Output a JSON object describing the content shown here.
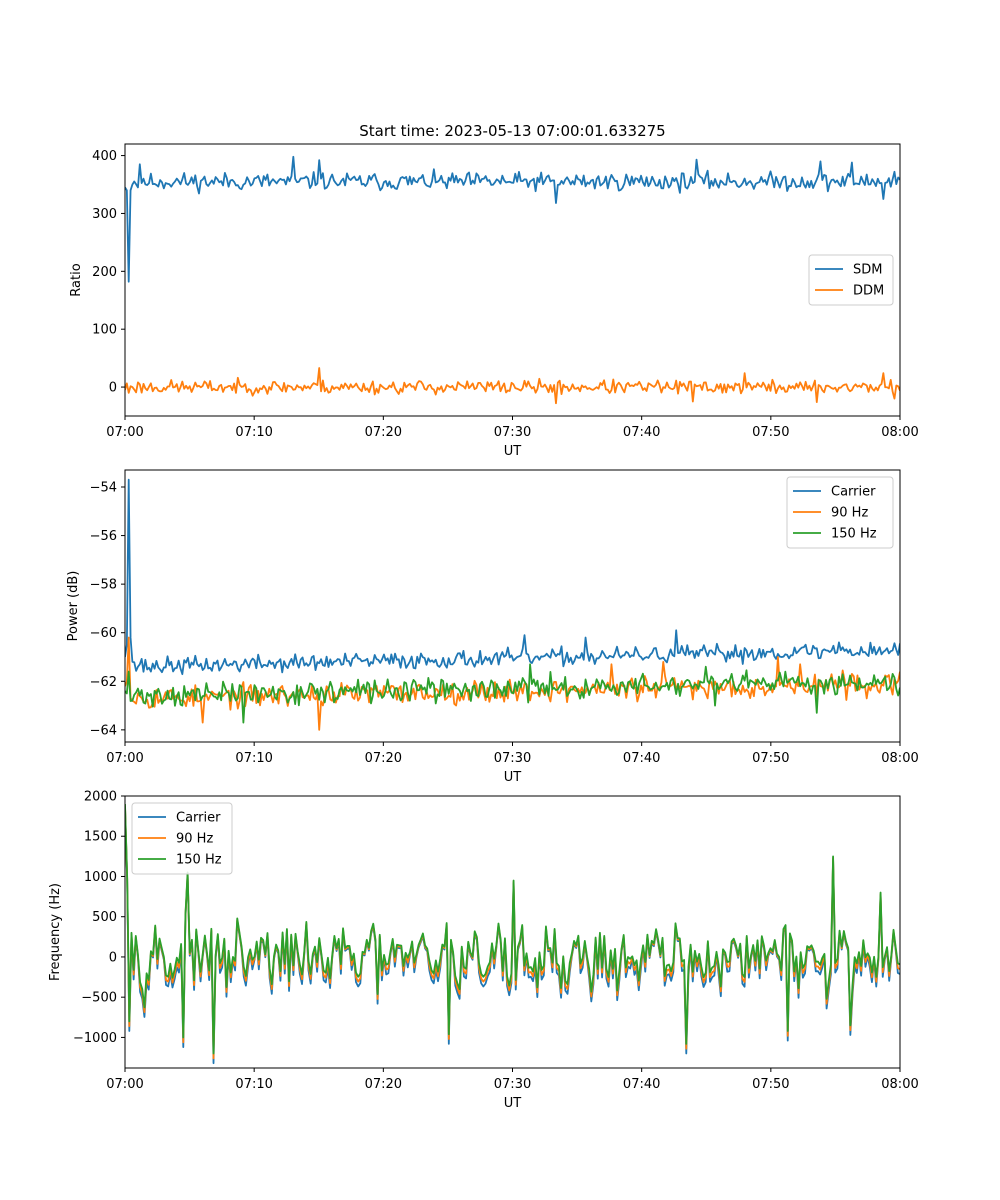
{
  "figure": {
    "title": "Start time: 2023-05-13 07:00:01.633275"
  },
  "colors": {
    "c0": "#1f77b4",
    "c1": "#ff7f0e",
    "c2": "#2ca02c"
  },
  "chart_data": [
    {
      "type": "line",
      "title": "Start time: 2023-05-13 07:00:01.633275",
      "xlabel": "UT",
      "ylabel": "Ratio",
      "x_ticks": [
        "07:00",
        "07:10",
        "07:20",
        "07:30",
        "07:40",
        "07:50",
        "08:00"
      ],
      "xlim_minutes": [
        0,
        60
      ],
      "ylim": [
        -50,
        420
      ],
      "y_ticks": [
        0,
        100,
        200,
        300,
        400
      ],
      "y_tick_labels": [
        "0",
        "100",
        "200",
        "300",
        "400"
      ],
      "legend_loc": "center-right",
      "series": [
        {
          "name": "SDM",
          "color": "#1f77b4",
          "base": 355,
          "amp": 26,
          "anchors": [
            [
              0,
              345
            ],
            [
              0.15,
              340
            ],
            [
              0.25,
              182
            ],
            [
              0.4,
              340
            ],
            [
              0.6,
              350
            ],
            [
              1.0,
              345
            ],
            [
              1.5,
              360
            ]
          ],
          "extremes": [
            [
              1.1,
              385
            ],
            [
              13.0,
              398
            ],
            [
              15.0,
              392
            ],
            [
              33.4,
              318
            ],
            [
              44.2,
              393
            ],
            [
              53.8,
              390
            ],
            [
              56.3,
              388
            ],
            [
              58.7,
              325
            ],
            [
              59.5,
              372
            ]
          ],
          "seed": 11
        },
        {
          "name": "DDM",
          "color": "#ff7f0e",
          "base": 0,
          "amp": 20,
          "anchors": [
            [
              0,
              -5
            ],
            [
              0.3,
              -10
            ],
            [
              0.6,
              0
            ]
          ],
          "extremes": [
            [
              15.0,
              33
            ],
            [
              33.3,
              -28
            ],
            [
              44.0,
              -25
            ],
            [
              47.9,
              24
            ],
            [
              53.5,
              -26
            ],
            [
              58.7,
              24
            ],
            [
              59.6,
              -20
            ]
          ],
          "seed": 23
        }
      ]
    },
    {
      "type": "line",
      "xlabel": "UT",
      "ylabel": "Power (dB)",
      "x_ticks": [
        "07:00",
        "07:10",
        "07:20",
        "07:30",
        "07:40",
        "07:50",
        "08:00"
      ],
      "xlim_minutes": [
        0,
        60
      ],
      "ylim": [
        -64.5,
        -53.3
      ],
      "y_ticks": [
        -64,
        -62,
        -60,
        -58,
        -56,
        -54
      ],
      "y_tick_labels": [
        "−64",
        "−62",
        "−60",
        "−58",
        "−56",
        "−54"
      ],
      "legend_loc": "top-right",
      "series": [
        {
          "name": "Carrier",
          "color": "#1f77b4",
          "base": -61.4,
          "trend": 0.7,
          "amp": 0.6,
          "anchors": [
            [
              0,
              -61.0
            ],
            [
              0.15,
              -60.5
            ],
            [
              0.25,
              -53.7
            ],
            [
              0.4,
              -60.2
            ],
            [
              0.6,
              -61.2
            ],
            [
              1.2,
              -61.3
            ],
            [
              2.0,
              -61.6
            ]
          ],
          "extremes": [
            [
              30.9,
              -60.1
            ],
            [
              42.7,
              -59.9
            ],
            [
              35.7,
              -60.2
            ],
            [
              55.3,
              -60.4
            ]
          ],
          "seed": 37
        },
        {
          "name": "90 Hz",
          "color": "#ff7f0e",
          "base": -62.7,
          "trend": 0.6,
          "amp": 0.8,
          "anchors": [
            [
              0,
              -62.2
            ],
            [
              0.2,
              -62.0
            ],
            [
              0.35,
              -60.2
            ],
            [
              0.6,
              -62.8
            ],
            [
              1.0,
              -62.5
            ]
          ],
          "extremes": [
            [
              15.1,
              -64.0
            ],
            [
              6.0,
              -63.7
            ],
            [
              41.7,
              -61.2
            ],
            [
              37.7,
              -61.3
            ],
            [
              50.5,
              -61.0
            ],
            [
              52.3,
              -61.3
            ]
          ],
          "seed": 53
        },
        {
          "name": "150 Hz",
          "color": "#2ca02c",
          "base": -62.6,
          "trend": 0.6,
          "amp": 0.8,
          "anchors": [
            [
              0,
              -62.4
            ],
            [
              0.3,
              -61.6
            ],
            [
              0.6,
              -62.8
            ],
            [
              1.0,
              -62.3
            ]
          ],
          "extremes": [
            [
              9.1,
              -63.7
            ],
            [
              31.4,
              -61.3
            ],
            [
              44.9,
              -61.4
            ],
            [
              43.4,
              -62.0
            ],
            [
              45.7,
              -63.0
            ],
            [
              53.6,
              -63.3
            ]
          ],
          "seed": 71
        }
      ]
    },
    {
      "type": "line",
      "xlabel": "UT",
      "ylabel": "Frequency (Hz)",
      "x_ticks": [
        "07:00",
        "07:10",
        "07:20",
        "07:30",
        "07:40",
        "07:50",
        "08:00"
      ],
      "xlim_minutes": [
        0,
        60
      ],
      "ylim": [
        -1380,
        2000
      ],
      "y_ticks": [
        -1000,
        -500,
        0,
        500,
        1000,
        1500,
        2000
      ],
      "y_tick_labels": [
        "−1000",
        "−500",
        "0",
        "500",
        "1000",
        "1500",
        "2000"
      ],
      "legend_loc": "top-left",
      "series": [
        {
          "name": "Carrier",
          "color": "#1f77b4",
          "base": -60,
          "amp": 380,
          "offset": -60
        },
        {
          "name": "90 Hz",
          "color": "#ff7f0e",
          "base": -30,
          "amp": 380,
          "offset": -30
        },
        {
          "name": "150 Hz",
          "color": "#2ca02c",
          "base": 0,
          "amp": 380,
          "offset": 0,
          "anchors": [
            [
              0,
              1900
            ],
            [
              0.15,
              1000
            ],
            [
              0.3,
              -800
            ],
            [
              0.5,
              300
            ]
          ],
          "extremes": [
            [
              4.5,
              -1000
            ],
            [
              6.8,
              -1200
            ],
            [
              4.8,
              1050
            ],
            [
              25.1,
              -960
            ],
            [
              30.0,
              950
            ],
            [
              43.4,
              -1080
            ],
            [
              51.3,
              -920
            ],
            [
              54.9,
              1250
            ],
            [
              56.1,
              -850
            ],
            [
              58.5,
              800
            ]
          ],
          "seed": 97
        }
      ]
    }
  ]
}
